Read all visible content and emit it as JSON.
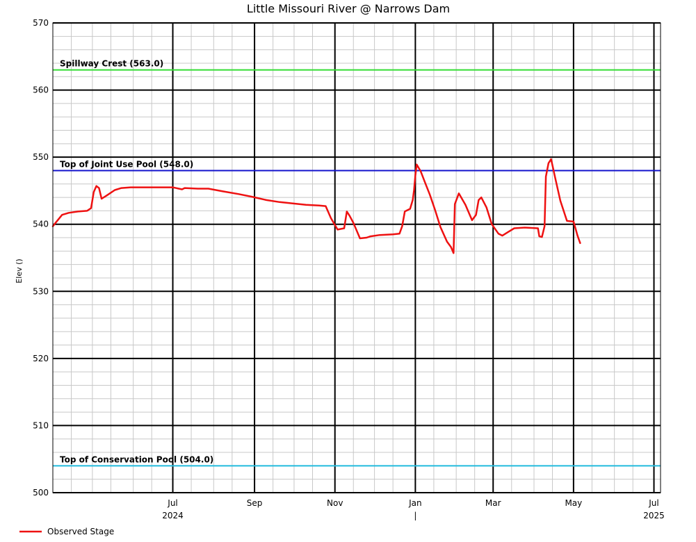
{
  "chart_data": {
    "type": "line",
    "title": "Little Missouri River @ Narrows Dam",
    "ylabel": "Elev ()",
    "xlabel": "",
    "ylim": [
      500,
      570
    ],
    "y_ticks": [
      500,
      510,
      520,
      530,
      540,
      550,
      560,
      570
    ],
    "x_range": [
      "2024-04-01",
      "2025-07-06"
    ],
    "x_ticks_major": [
      {
        "date": "2024-07-01",
        "label": "Jul",
        "year_label": "2024"
      },
      {
        "date": "2024-09-01",
        "label": "Sep",
        "year_label": ""
      },
      {
        "date": "2024-11-01",
        "label": "Nov",
        "year_label": ""
      },
      {
        "date": "2025-01-01",
        "label": "Jan",
        "year_label": "|"
      },
      {
        "date": "2025-03-01",
        "label": "Mar",
        "year_label": ""
      },
      {
        "date": "2025-05-01",
        "label": "May",
        "year_label": ""
      },
      {
        "date": "2025-07-01",
        "label": "Jul",
        "year_label": "2025"
      }
    ],
    "grid": true,
    "reference_lines": [
      {
        "label": "Spillway Crest (563.0)",
        "value": 563.0,
        "color": "#33dd33"
      },
      {
        "label": "Top of Joint Use Pool (548.0)",
        "value": 548.0,
        "color": "#1111cc"
      },
      {
        "label": "Top of Conservation Pool (504.0)",
        "value": 504.0,
        "color": "#22bbdd"
      }
    ],
    "series": [
      {
        "name": "Observed Stage",
        "color": "#ee1111",
        "points": [
          [
            "2024-04-01",
            539.7
          ],
          [
            "2024-04-03",
            540.2
          ],
          [
            "2024-04-08",
            541.4
          ],
          [
            "2024-04-13",
            541.7
          ],
          [
            "2024-04-20",
            541.9
          ],
          [
            "2024-04-27",
            542.0
          ],
          [
            "2024-04-30",
            542.4
          ],
          [
            "2024-05-02",
            544.8
          ],
          [
            "2024-05-04",
            545.7
          ],
          [
            "2024-05-06",
            545.4
          ],
          [
            "2024-05-08",
            543.8
          ],
          [
            "2024-05-12",
            544.3
          ],
          [
            "2024-05-18",
            545.1
          ],
          [
            "2024-05-23",
            545.4
          ],
          [
            "2024-05-30",
            545.5
          ],
          [
            "2024-06-10",
            545.5
          ],
          [
            "2024-06-25",
            545.5
          ],
          [
            "2024-07-01",
            545.5
          ],
          [
            "2024-07-08",
            545.2
          ],
          [
            "2024-07-10",
            545.4
          ],
          [
            "2024-07-20",
            545.3
          ],
          [
            "2024-07-28",
            545.3
          ],
          [
            "2024-08-08",
            544.9
          ],
          [
            "2024-08-20",
            544.5
          ],
          [
            "2024-08-30",
            544.1
          ],
          [
            "2024-09-10",
            543.6
          ],
          [
            "2024-09-20",
            543.3
          ],
          [
            "2024-09-30",
            543.1
          ],
          [
            "2024-10-10",
            542.9
          ],
          [
            "2024-10-20",
            542.8
          ],
          [
            "2024-10-25",
            542.7
          ],
          [
            "2024-10-29",
            540.9
          ],
          [
            "2024-11-03",
            539.2
          ],
          [
            "2024-11-08",
            539.4
          ],
          [
            "2024-11-10",
            541.9
          ],
          [
            "2024-11-12",
            541.3
          ],
          [
            "2024-11-15",
            540.2
          ],
          [
            "2024-11-20",
            537.9
          ],
          [
            "2024-11-25",
            538.0
          ],
          [
            "2024-11-28",
            538.2
          ],
          [
            "2024-12-05",
            538.4
          ],
          [
            "2024-12-15",
            538.5
          ],
          [
            "2024-12-20",
            538.6
          ],
          [
            "2024-12-22",
            539.7
          ],
          [
            "2024-12-24",
            541.9
          ],
          [
            "2024-12-28",
            542.3
          ],
          [
            "2024-12-30",
            543.6
          ],
          [
            "2024-12-31",
            545.1
          ],
          [
            "2025-01-01",
            547.3
          ],
          [
            "2025-01-02",
            548.9
          ],
          [
            "2025-01-05",
            547.9
          ],
          [
            "2025-01-08",
            546.4
          ],
          [
            "2025-01-12",
            544.4
          ],
          [
            "2025-01-16",
            542.1
          ],
          [
            "2025-01-20",
            539.6
          ],
          [
            "2025-01-25",
            537.4
          ],
          [
            "2025-01-28",
            536.6
          ],
          [
            "2025-01-30",
            535.7
          ],
          [
            "2025-01-31",
            543.0
          ],
          [
            "2025-02-03",
            544.6
          ],
          [
            "2025-02-08",
            542.9
          ],
          [
            "2025-02-13",
            540.6
          ],
          [
            "2025-02-16",
            541.4
          ],
          [
            "2025-02-18",
            543.6
          ],
          [
            "2025-02-20",
            544.0
          ],
          [
            "2025-02-24",
            542.5
          ],
          [
            "2025-02-28",
            540.0
          ],
          [
            "2025-03-05",
            538.6
          ],
          [
            "2025-03-08",
            538.3
          ],
          [
            "2025-03-12",
            538.8
          ],
          [
            "2025-03-17",
            539.4
          ],
          [
            "2025-03-25",
            539.5
          ],
          [
            "2025-04-04",
            539.4
          ],
          [
            "2025-04-05",
            538.2
          ],
          [
            "2025-04-07",
            538.1
          ],
          [
            "2025-04-09",
            539.7
          ],
          [
            "2025-04-10",
            547.1
          ],
          [
            "2025-04-12",
            549.1
          ],
          [
            "2025-04-14",
            549.7
          ],
          [
            "2025-04-17",
            547.0
          ],
          [
            "2025-04-21",
            543.5
          ],
          [
            "2025-04-26",
            540.5
          ],
          [
            "2025-05-01",
            540.4
          ],
          [
            "2025-05-04",
            538.3
          ],
          [
            "2025-05-06",
            537.2
          ]
        ]
      }
    ]
  }
}
